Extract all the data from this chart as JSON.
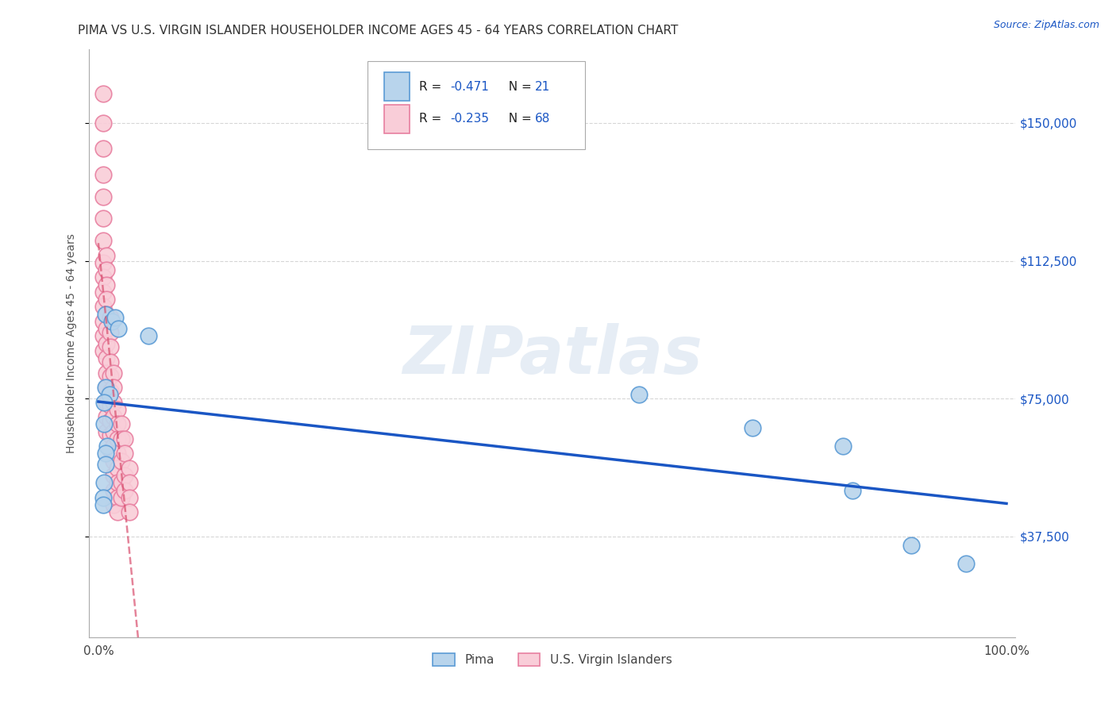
{
  "title": "PIMA VS U.S. VIRGIN ISLANDER HOUSEHOLDER INCOME AGES 45 - 64 YEARS CORRELATION CHART",
  "source": "Source: ZipAtlas.com",
  "ylabel": "Householder Income Ages 45 - 64 years",
  "watermark": "ZIPatlas",
  "pima_color": "#b8d4ec",
  "pima_edge_color": "#5b9bd5",
  "virgin_color": "#f9cdd8",
  "virgin_edge_color": "#e87fa0",
  "trend_pima_color": "#1a56c4",
  "trend_virgin_color": "#d94f6e",
  "legend_r_pima": "-0.471",
  "legend_n_pima": "21",
  "legend_r_virgin": "-0.235",
  "legend_n_virgin": "68",
  "pima_label": "Pima",
  "virgin_label": "U.S. Virgin Islanders",
  "xlim": [
    -0.01,
    1.01
  ],
  "ylim": [
    10000,
    170000
  ],
  "yticks": [
    37500,
    75000,
    112500,
    150000
  ],
  "ytick_labels": [
    "$37,500",
    "$75,000",
    "$112,500",
    "$150,000"
  ],
  "xticks": [
    0.0,
    0.25,
    0.5,
    0.75,
    1.0
  ],
  "xtick_labels": [
    "0.0%",
    "",
    "",
    "",
    "100.0%"
  ],
  "grid_color": "#cccccc",
  "background_color": "#ffffff",
  "title_color": "#333333",
  "source_color": "#1a56c4",
  "ytick_color": "#1a56c4",
  "pima_x": [
    0.008,
    0.015,
    0.018,
    0.022,
    0.055,
    0.008,
    0.012,
    0.006,
    0.006,
    0.01,
    0.008,
    0.008,
    0.006,
    0.005,
    0.005,
    0.595,
    0.72,
    0.82,
    0.83,
    0.895,
    0.955
  ],
  "pima_y": [
    98000,
    96000,
    97000,
    94000,
    92000,
    78000,
    76000,
    74000,
    68000,
    62000,
    60000,
    57000,
    52000,
    48000,
    46000,
    76000,
    67000,
    62000,
    50000,
    35000,
    30000
  ],
  "virgin_x": [
    0.005,
    0.005,
    0.005,
    0.005,
    0.005,
    0.005,
    0.005,
    0.005,
    0.005,
    0.005,
    0.005,
    0.005,
    0.005,
    0.005,
    0.009,
    0.009,
    0.009,
    0.009,
    0.009,
    0.009,
    0.009,
    0.009,
    0.009,
    0.009,
    0.009,
    0.009,
    0.009,
    0.013,
    0.013,
    0.013,
    0.013,
    0.013,
    0.013,
    0.013,
    0.013,
    0.013,
    0.013,
    0.017,
    0.017,
    0.017,
    0.017,
    0.017,
    0.017,
    0.017,
    0.017,
    0.017,
    0.017,
    0.021,
    0.021,
    0.021,
    0.021,
    0.021,
    0.021,
    0.021,
    0.021,
    0.025,
    0.025,
    0.025,
    0.025,
    0.025,
    0.029,
    0.029,
    0.029,
    0.029,
    0.034,
    0.034,
    0.034,
    0.034
  ],
  "virgin_y": [
    158000,
    150000,
    143000,
    136000,
    130000,
    124000,
    118000,
    112000,
    108000,
    104000,
    100000,
    96000,
    92000,
    88000,
    114000,
    110000,
    106000,
    102000,
    98000,
    94000,
    90000,
    86000,
    82000,
    78000,
    74000,
    70000,
    66000,
    97000,
    93000,
    89000,
    85000,
    81000,
    77000,
    73000,
    69000,
    65000,
    61000,
    82000,
    78000,
    74000,
    70000,
    66000,
    62000,
    58000,
    54000,
    50000,
    46000,
    72000,
    68000,
    64000,
    60000,
    56000,
    52000,
    48000,
    44000,
    68000,
    64000,
    58000,
    52000,
    48000,
    64000,
    60000,
    54000,
    50000,
    56000,
    52000,
    48000,
    44000
  ]
}
